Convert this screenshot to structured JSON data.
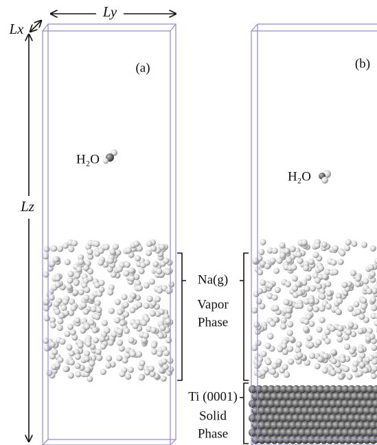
{
  "panel_a": {
    "label": "(a)",
    "molecule": "H₂O",
    "dims": {
      "x": "Lx",
      "y": "Ly",
      "z": "Lz"
    }
  },
  "panel_b": {
    "label": "(b)",
    "molecule": "H₂O"
  },
  "annotations": {
    "vapor_species": "Na(g)",
    "vapor_phase": [
      "Vapor",
      "Phase"
    ],
    "solid_species": "Ti (0001)",
    "solid_phase": [
      "Solid",
      "Phase"
    ]
  }
}
